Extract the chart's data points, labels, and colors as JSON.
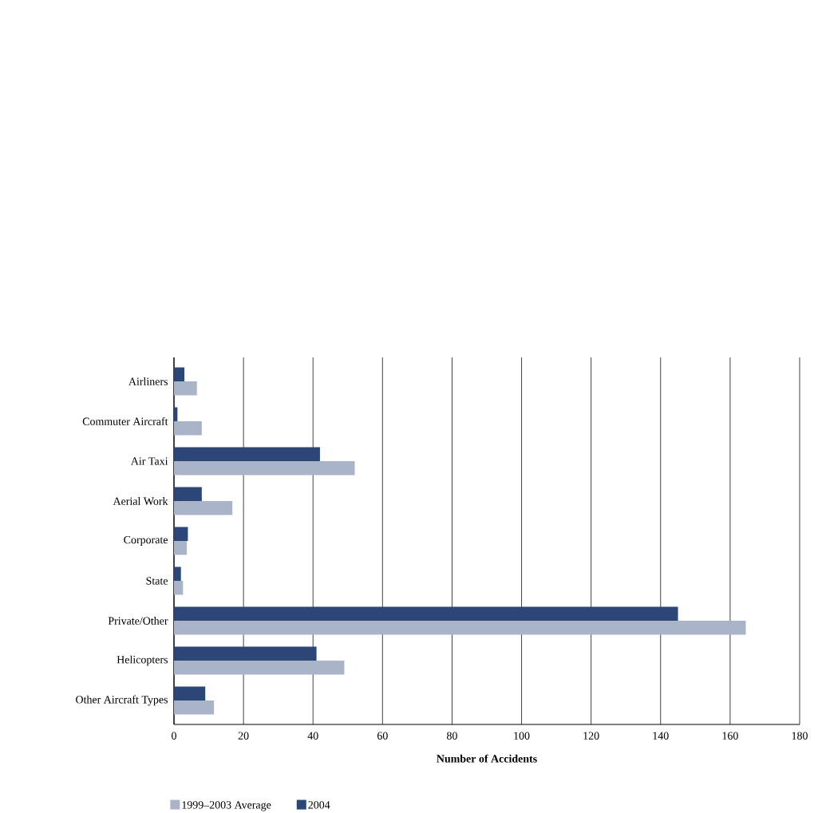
{
  "chart_data": {
    "type": "bar",
    "orientation": "horizontal",
    "xlabel": "Number of Accidents",
    "categories": [
      "Airliners",
      "Commuter Aircraft",
      "Air Taxi",
      "Aerial Work",
      "Corporate",
      "State",
      "Private/Other",
      "Helicopters",
      "Other Aircraft Types"
    ],
    "series": [
      {
        "name": "1999–2003 Average",
        "color": "#a9b4c8",
        "values": [
          6.6,
          8,
          52,
          16.8,
          3.7,
          2.6,
          164.5,
          49,
          11.5
        ]
      },
      {
        "name": "2004",
        "color": "#2b4677",
        "values": [
          3,
          1,
          42,
          8,
          4,
          2,
          145,
          41,
          9
        ]
      }
    ],
    "xlim": [
      0,
      180
    ],
    "xticks": [
      0,
      20,
      40,
      60,
      80,
      100,
      120,
      140,
      160,
      180
    ],
    "grid": "x",
    "legend": "bottom left"
  }
}
